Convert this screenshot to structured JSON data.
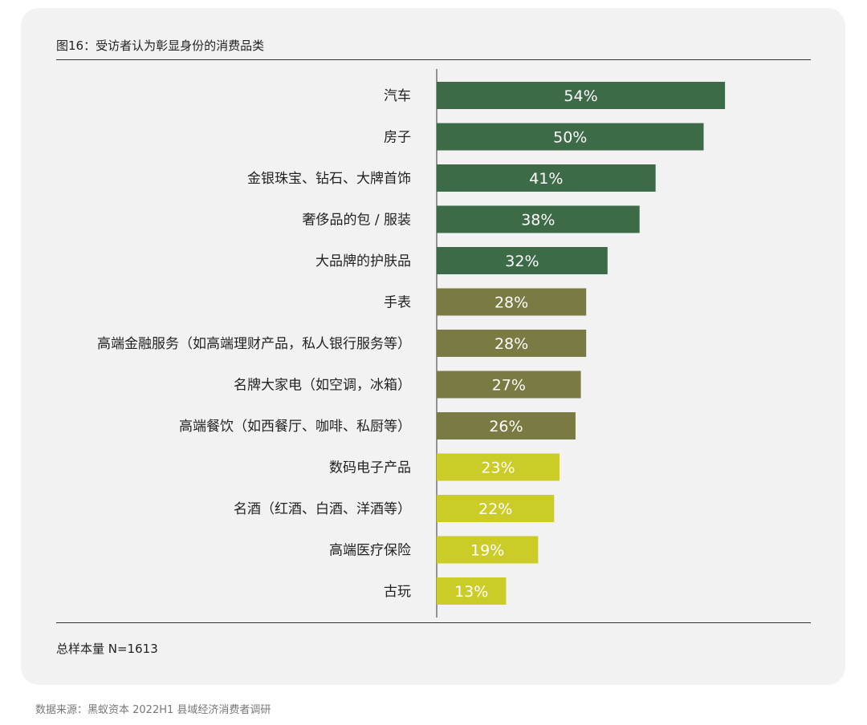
{
  "title": "图16：受访者认为彰显身份的消费品类",
  "footer": {
    "sample": "总样本量 N=1613",
    "source": "数据来源：黑蚁资本 2022H1 县域经济消费者调研"
  },
  "colors": {
    "tier1": "#3d6b48",
    "tier2": "#7a7a43",
    "tier3": "#cccc28"
  },
  "chart_data": {
    "type": "bar",
    "orientation": "horizontal",
    "title": "图16：受访者认为彰显身份的消费品类",
    "xlabel": "",
    "ylabel": "",
    "xlim": [
      0,
      100
    ],
    "unit": "%",
    "grid": false,
    "categories": [
      "汽车",
      "房子",
      "金银珠宝、钻石、大牌首饰",
      "奢侈品的包 / 服装",
      "大品牌的护肤品",
      "手表",
      "高端金融服务（如高端理财产品，私人银行服务等）",
      "名牌大家电（如空调，冰箱）",
      "高端餐饮（如西餐厅、咖啡、私厨等）",
      "数码电子产品",
      "名酒（红酒、白酒、洋酒等）",
      "高端医疗保险",
      "古玩"
    ],
    "values": [
      54,
      50,
      41,
      38,
      32,
      28,
      28,
      27,
      26,
      23,
      22,
      19,
      13
    ],
    "data_labels": [
      "54%",
      "50%",
      "41%",
      "38%",
      "32%",
      "28%",
      "28%",
      "27%",
      "26%",
      "23%",
      "22%",
      "19%",
      "13%"
    ],
    "color_tiers": [
      1,
      1,
      1,
      1,
      1,
      2,
      2,
      2,
      2,
      3,
      3,
      3,
      3
    ]
  }
}
